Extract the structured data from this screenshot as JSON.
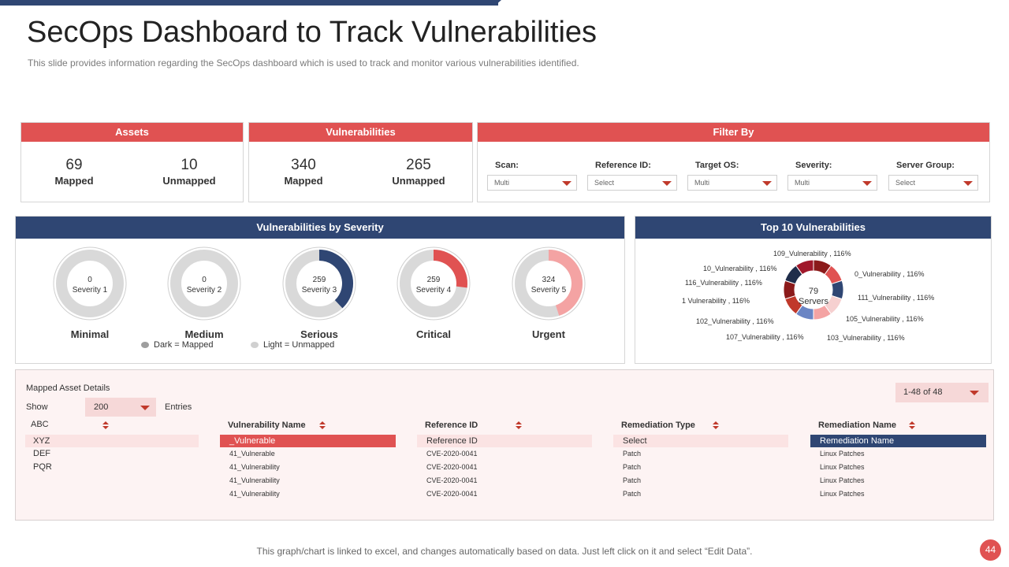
{
  "title": "SecOps Dashboard to Track Vulnerabilities",
  "subtitle": "This slide provides information regarding the SecOps dashboard which is used to track and monitor various vulnerabilities identified.",
  "colors": {
    "navy": "#2f4673",
    "red": "#e05252",
    "light_gray": "#d9d9d9",
    "light_red": "#f4a3a3"
  },
  "assets": {
    "header": "Assets",
    "mapped_value": "69",
    "mapped_label": "Mapped",
    "unmapped_value": "10",
    "unmapped_label": "Unmapped"
  },
  "vulnerabilities": {
    "header": "Vulnerabilities",
    "mapped_value": "340",
    "mapped_label": "Mapped",
    "unmapped_value": "265",
    "unmapped_label": "Unmapped"
  },
  "filter": {
    "header": "Filter By",
    "items": [
      {
        "label": "Scan:",
        "value": "Multi"
      },
      {
        "label": "Reference ID:",
        "value": "Select"
      },
      {
        "label": "Target OS:",
        "value": "Multi"
      },
      {
        "label": "Severity:",
        "value": "Multi"
      },
      {
        "label": "Server Group:",
        "value": "Select"
      }
    ]
  },
  "severity": {
    "header": "Vulnerabilities by Severity",
    "legend_dark": "Dark = Mapped",
    "legend_light": "Light = Unmapped",
    "items": [
      {
        "count": "0",
        "name": "Severity 1",
        "category": "Minimal",
        "fraction": 0,
        "color": "#d9d9d9"
      },
      {
        "count": "0",
        "name": "Severity 2",
        "category": "Medium",
        "fraction": 0,
        "color": "#d9d9d9"
      },
      {
        "count": "259",
        "name": "Severity 3",
        "category": "Serious",
        "fraction": 0.38,
        "color": "#2f4673"
      },
      {
        "count": "259",
        "name": "Severity 4",
        "category": "Critical",
        "fraction": 0.27,
        "color": "#e05252"
      },
      {
        "count": "324",
        "name": "Severity 5",
        "category": "Urgent",
        "fraction": 0.45,
        "color": "#f4a3a3"
      }
    ]
  },
  "top10": {
    "header": "Top 10 Vulnerabilities",
    "center_value": "79",
    "center_label": "Servers",
    "labels": [
      "109_Vulnerability , 116%",
      "10_Vulnerability , 116%",
      "0_Vulnerability , 116%",
      "116_Vulnerability , 116%",
      "111_Vulnerability , 116%",
      "1  Vulnerability , 116%",
      "105_Vulnerability , 116%",
      "102_Vulnerability , 116%",
      "107_Vulnerability , 116%",
      "103_Vulnerability , 116%"
    ],
    "segment_colors": [
      "#8b1a1a",
      "#e05252",
      "#2f4673",
      "#f6d0d0",
      "#f4a3a3",
      "#6b85c4",
      "#c0392b",
      "#8b1a1a",
      "#1f2d4a",
      "#a0182a"
    ]
  },
  "details": {
    "title": "Mapped Asset Details",
    "pagination": "1-48 of 48",
    "show_label": "Show",
    "show_value": "200",
    "entries_label": "Entries",
    "assets": [
      "ABC",
      "XYZ",
      "DEF",
      "PQR"
    ],
    "columns": {
      "vulnerability": "Vulnerability Name",
      "reference": "Reference ID",
      "remediation_type": "Remediation Type",
      "remediation_name": "Remediation Name"
    },
    "filter_row": {
      "vulnerability": "_Vulnerable",
      "reference": "Reference ID",
      "remediation_type": "Select",
      "remediation_name": "Remediation Name"
    },
    "rows": [
      {
        "vulnerability": "41_Vulnerable",
        "reference": "CVE-2020-0041",
        "remediation_type": "Patch",
        "remediation_name": "Linux Patches"
      },
      {
        "vulnerability": "41_Vulnerability",
        "reference": "CVE-2020-0041",
        "remediation_type": "Patch",
        "remediation_name": "Linux Patches"
      },
      {
        "vulnerability": "41_Vulnerability",
        "reference": "CVE-2020-0041",
        "remediation_type": "Patch",
        "remediation_name": "Linux Patches"
      },
      {
        "vulnerability": "41_Vulnerability",
        "reference": "CVE-2020-0041",
        "remediation_type": "Patch",
        "remediation_name": "Linux Patches"
      }
    ]
  },
  "footer": "This graph/chart is linked to excel, and changes automatically based on data. Just left click on it and select “Edit Data”.",
  "page_number": "44"
}
